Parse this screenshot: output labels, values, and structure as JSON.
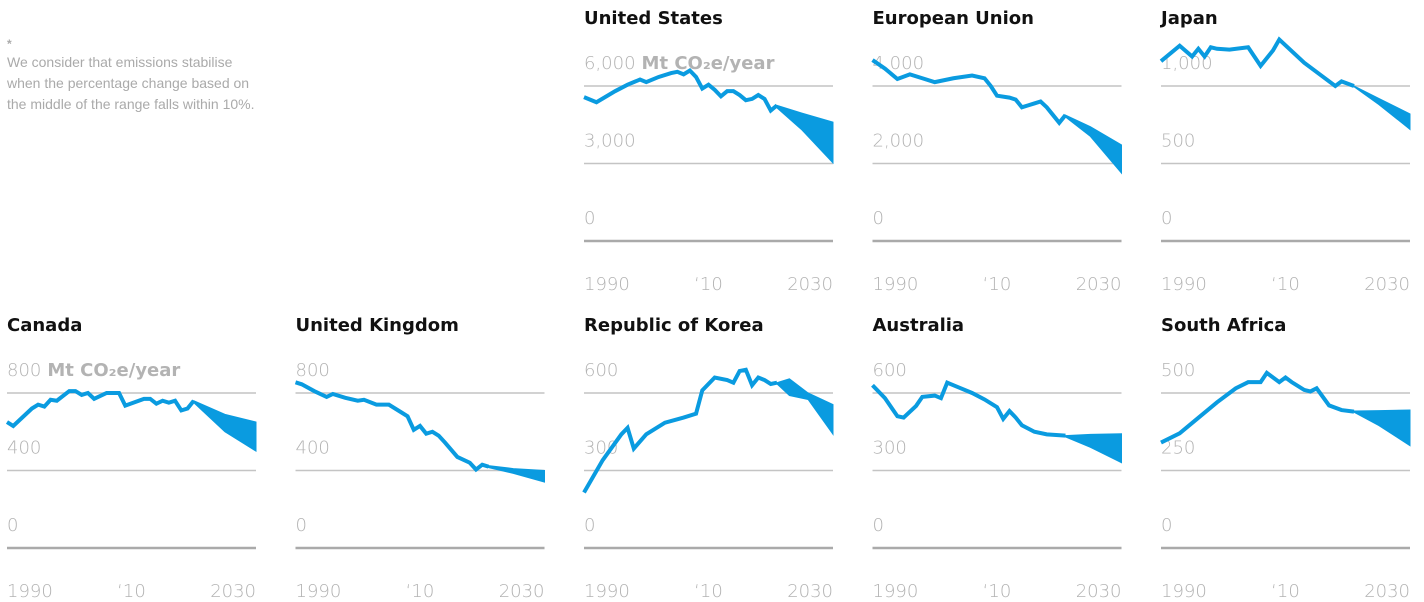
{
  "note": {
    "marker": "*",
    "text": "We consider that emissions stabilise when the percentage change based on the middle of the range falls within 10%."
  },
  "chart_data": [
    {
      "type": "line",
      "title": "United States",
      "unit": "Mt CO₂e/year",
      "color": "#0a9be0",
      "xlim": [
        1990,
        2030
      ],
      "xticks": [
        1990,
        {
          "value": 2010,
          "label": "‘10"
        },
        2030
      ],
      "ylim": [
        0,
        8000
      ],
      "yticks": [
        0,
        {
          "value": 3000,
          "label": "3,000"
        },
        {
          "value": 6000,
          "label": "6,000"
        }
      ],
      "x": [
        1990,
        1992,
        1995,
        1997,
        1999,
        2000,
        2002,
        2004,
        2005,
        2006,
        2007,
        2008,
        2009,
        2010,
        2011,
        2012,
        2013,
        2014,
        2015,
        2016,
        2017,
        2018,
        2019,
        2020,
        2021
      ],
      "values": [
        5570,
        5370,
        5800,
        6050,
        6250,
        6150,
        6350,
        6500,
        6550,
        6450,
        6600,
        6350,
        5900,
        6050,
        5850,
        5600,
        5800,
        5800,
        5650,
        5450,
        5500,
        5650,
        5500,
        5050,
        5250
      ],
      "band": {
        "x": [
          2021,
          2025,
          2030
        ],
        "high": [
          5250,
          4950,
          4600
        ],
        "low": [
          5150,
          4300,
          3020
        ]
      }
    },
    {
      "type": "line",
      "title": "European Union",
      "color": "#0a9be0",
      "xlim": [
        1990,
        2030
      ],
      "xticks": [
        1990,
        {
          "value": 2010,
          "label": "‘10"
        },
        2030
      ],
      "ylim": [
        0,
        5330
      ],
      "yticks": [
        0,
        {
          "value": 2000,
          "label": "2,000"
        },
        {
          "value": 4000,
          "label": "4,000"
        }
      ],
      "x": [
        1990,
        1992,
        1994,
        1996,
        1998,
        2000,
        2003,
        2006,
        2008,
        2009,
        2010,
        2012,
        2013,
        2014,
        2015,
        2016,
        2017,
        2018,
        2019,
        2020,
        2021
      ],
      "values": [
        4670,
        4450,
        4180,
        4300,
        4200,
        4100,
        4200,
        4270,
        4200,
        4000,
        3750,
        3700,
        3650,
        3450,
        3500,
        3550,
        3600,
        3450,
        3250,
        3050,
        3250
      ],
      "band": {
        "x": [
          2021,
          2025,
          2030
        ],
        "high": [
          3250,
          2950,
          2480
        ],
        "low": [
          3200,
          2700,
          1750
        ]
      }
    },
    {
      "type": "line",
      "title": "Japan",
      "color": "#0a9be0",
      "xlim": [
        1990,
        2030
      ],
      "xticks": [
        1990,
        {
          "value": 2010,
          "label": "‘10"
        },
        2030
      ],
      "ylim": [
        0,
        1330
      ],
      "yticks": [
        0,
        500,
        {
          "value": 1000,
          "label": "1,000"
        }
      ],
      "x": [
        1990,
        1993,
        1995,
        1996,
        1997,
        1998,
        1999,
        2001,
        2004,
        2006,
        2008,
        2009,
        2013,
        2016,
        2018,
        2019,
        2021
      ],
      "values": [
        1160,
        1260,
        1190,
        1240,
        1190,
        1250,
        1240,
        1235,
        1250,
        1130,
        1230,
        1300,
        1150,
        1060,
        1000,
        1030,
        1000
      ],
      "band": {
        "x": [
          2021,
          2025,
          2030
        ],
        "high": [
          1000,
          920,
          820
        ],
        "low": [
          995,
          880,
          720
        ]
      }
    },
    {
      "type": "line",
      "title": "Canada",
      "unit": "Mt CO₂e/year",
      "color": "#0a9be0",
      "xlim": [
        1990,
        2030
      ],
      "xticks": [
        1990,
        {
          "value": 2010,
          "label": "‘10"
        },
        2030
      ],
      "ylim": [
        0,
        1070
      ],
      "yticks": [
        0,
        400,
        800
      ],
      "x": [
        1990,
        1991,
        1994,
        1995,
        1996,
        1997,
        1998,
        2000,
        2001,
        2002,
        2003,
        2004,
        2006,
        2008,
        2009,
        2012,
        2013,
        2014,
        2015,
        2016,
        2017,
        2018,
        2019,
        2020
      ],
      "values": [
        650,
        630,
        720,
        740,
        730,
        765,
        760,
        810,
        810,
        790,
        800,
        770,
        800,
        800,
        735,
        770,
        770,
        745,
        760,
        750,
        760,
        710,
        720,
        760
      ],
      "band": {
        "x": [
          2020,
          2025,
          2030
        ],
        "high": [
          760,
          690,
          650
        ],
        "low": [
          750,
          600,
          500
        ]
      }
    },
    {
      "type": "line",
      "title": "United Kingdom",
      "color": "#0a9be0",
      "xlim": [
        1990,
        2030
      ],
      "xticks": [
        1990,
        {
          "value": 2010,
          "label": "‘10"
        },
        2030
      ],
      "ylim": [
        0,
        1070
      ],
      "yticks": [
        0,
        400,
        800
      ],
      "x": [
        1990,
        1991,
        1993,
        1995,
        1996,
        1998,
        2000,
        2001,
        2003,
        2005,
        2007,
        2008,
        2009,
        2010,
        2011,
        2012,
        2013,
        2014,
        2016,
        2018,
        2019,
        2020,
        2021
      ],
      "values": [
        855,
        845,
        810,
        780,
        795,
        775,
        760,
        765,
        740,
        740,
        700,
        680,
        610,
        630,
        590,
        600,
        580,
        545,
        470,
        440,
        405,
        430,
        420
      ],
      "band": {
        "x": [
          2021,
          2025,
          2030
        ],
        "high": [
          425,
          410,
          400
        ],
        "low": [
          415,
          385,
          340
        ]
      }
    },
    {
      "type": "line",
      "title": "Republic of Korea",
      "color": "#0a9be0",
      "xlim": [
        1990,
        2030
      ],
      "xticks": [
        1990,
        {
          "value": 2010,
          "label": "‘10"
        },
        2030
      ],
      "ylim": [
        0,
        800
      ],
      "yticks": [
        0,
        300,
        600
      ],
      "x": [
        1990,
        1993,
        1996,
        1997,
        1998,
        2000,
        2003,
        2006,
        2008,
        2009,
        2011,
        2013,
        2014,
        2015,
        2016,
        2017,
        2018,
        2019,
        2020,
        2021
      ],
      "values": [
        215,
        340,
        440,
        465,
        385,
        440,
        485,
        505,
        520,
        610,
        660,
        650,
        640,
        685,
        690,
        630,
        660,
        650,
        635,
        640
      ],
      "band": {
        "x": [
          2021,
          2023,
          2026,
          2030
        ],
        "high": [
          640,
          655,
          600,
          555
        ],
        "low": [
          635,
          590,
          575,
          440
        ]
      }
    },
    {
      "type": "line",
      "title": "Australia",
      "color": "#0a9be0",
      "xlim": [
        1990,
        2030
      ],
      "xticks": [
        1990,
        {
          "value": 2010,
          "label": "‘10"
        },
        2030
      ],
      "ylim": [
        0,
        800
      ],
      "yticks": [
        0,
        300,
        600
      ],
      "x": [
        1990,
        1992,
        1994,
        1995,
        1997,
        1998,
        2000,
        2001,
        2002,
        2004,
        2006,
        2008,
        2010,
        2011,
        2012,
        2013,
        2014,
        2016,
        2018,
        2021
      ],
      "values": [
        630,
        580,
        510,
        505,
        550,
        585,
        590,
        580,
        640,
        620,
        600,
        575,
        545,
        500,
        530,
        505,
        475,
        450,
        440,
        435
      ],
      "band": {
        "x": [
          2021,
          2025,
          2030
        ],
        "high": [
          435,
          440,
          442
        ],
        "low": [
          430,
          390,
          330
        ]
      }
    },
    {
      "type": "line",
      "title": "South Africa",
      "color": "#0a9be0",
      "xlim": [
        1990,
        2030
      ],
      "xticks": [
        1990,
        {
          "value": 2010,
          "label": "‘10"
        },
        2030
      ],
      "ylim": [
        0,
        670
      ],
      "yticks": [
        0,
        250,
        500
      ],
      "x": [
        1990,
        1993,
        1996,
        1999,
        2002,
        2004,
        2006,
        2007,
        2009,
        2010,
        2011,
        2013,
        2014,
        2015,
        2017,
        2019,
        2021
      ],
      "values": [
        340,
        370,
        420,
        470,
        515,
        535,
        535,
        565,
        535,
        550,
        535,
        510,
        505,
        515,
        460,
        445,
        440
      ],
      "band": {
        "x": [
          2021,
          2025,
          2030
        ],
        "high": [
          442,
          443,
          445
        ],
        "low": [
          438,
          395,
          330
        ]
      }
    }
  ]
}
